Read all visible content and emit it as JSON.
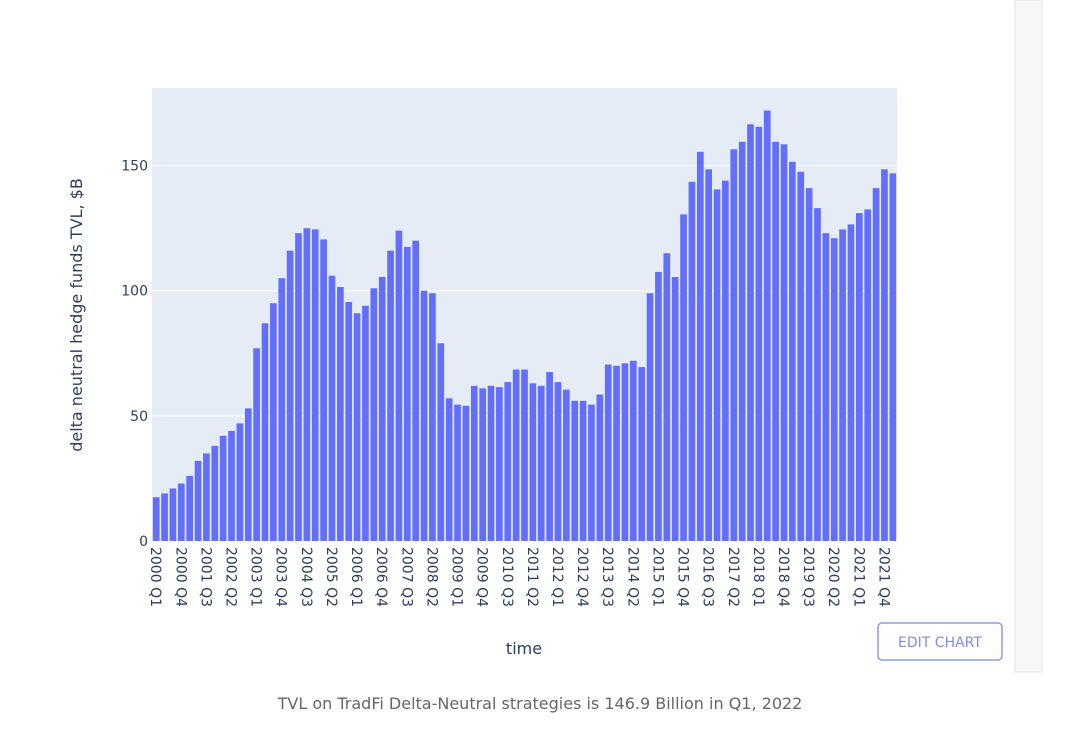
{
  "chart_data": {
    "type": "bar",
    "x_label": "time",
    "y_label": "delta neutral hedge funds TVL, $B",
    "categories": [
      "2000 Q1",
      null,
      null,
      "2000 Q4",
      null,
      null,
      "2001 Q3",
      null,
      null,
      "2002 Q2",
      null,
      null,
      "2003 Q1",
      null,
      null,
      "2003 Q4",
      null,
      null,
      "2004 Q3",
      null,
      null,
      "2005 Q2",
      null,
      null,
      "2006 Q1",
      null,
      null,
      "2006 Q4",
      null,
      null,
      "2007 Q3",
      null,
      null,
      "2008 Q2",
      null,
      null,
      "2009 Q1",
      null,
      null,
      "2009 Q4",
      null,
      null,
      "2010 Q3",
      null,
      null,
      "2011 Q2",
      null,
      null,
      "2012 Q1",
      null,
      null,
      "2012 Q4",
      null,
      null,
      "2013 Q3",
      null,
      null,
      "2014 Q2",
      null,
      null,
      "2015 Q1",
      null,
      null,
      "2015 Q4",
      null,
      null,
      "2016 Q3",
      null,
      null,
      "2017 Q2",
      null,
      null,
      "2018 Q1",
      null,
      null,
      "2018 Q4",
      null,
      null,
      "2019 Q3",
      null,
      null,
      "2020 Q2",
      null,
      null,
      "2021 Q1",
      null,
      null,
      "2021 Q4",
      null
    ],
    "values": [
      17.5,
      19,
      21,
      23,
      26,
      32,
      35,
      38,
      42,
      44,
      47,
      53,
      77,
      87,
      95,
      105,
      116,
      123,
      125,
      124.5,
      120.5,
      106,
      101.5,
      95.5,
      91,
      94,
      101,
      105.5,
      116,
      124,
      117.5,
      120,
      100,
      99,
      79,
      57,
      54.5,
      54,
      62,
      61,
      62,
      61.5,
      63.5,
      68.5,
      68.5,
      63,
      62,
      67.5,
      63.5,
      60.5,
      56,
      56,
      54.5,
      58.5,
      70.5,
      70,
      71,
      72,
      69.5,
      99,
      107.5,
      115,
      105.5,
      130.5,
      143.5,
      155.5,
      148.5,
      140.5,
      144,
      156.5,
      159.5,
      166.5,
      165.5,
      172,
      159.5,
      158.5,
      151.5,
      147.5,
      141,
      133,
      123,
      121,
      124.5,
      126.5,
      131,
      132.5,
      141,
      148.5,
      146.9
    ],
    "color": "#636efa",
    "ylim": [
      0,
      181
    ],
    "yticks": [
      0,
      50,
      100,
      150
    ],
    "grid": true
  },
  "button": "EDIT CHART",
  "caption": "TVL on TradFi Delta-Neutral strategies is 146.9 Billion in Q1, 2022"
}
